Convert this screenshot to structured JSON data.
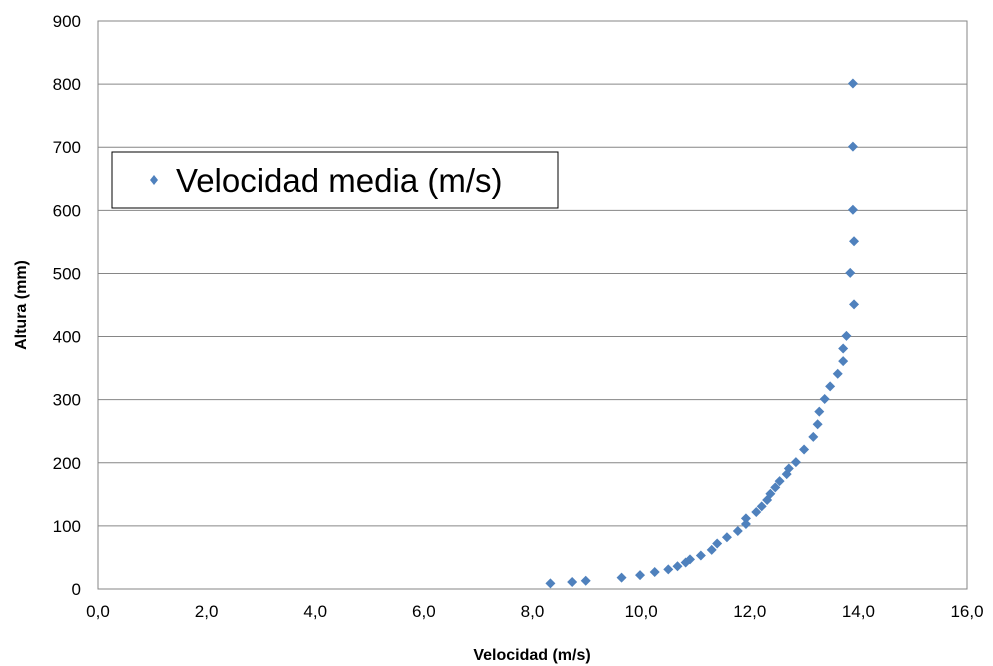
{
  "chart_data": {
    "type": "scatter",
    "title": "",
    "xlabel": "Velocidad (m/s)",
    "ylabel": "Altura (mm)",
    "xlim": [
      0,
      16
    ],
    "ylim": [
      0,
      900
    ],
    "x_ticks": [
      0,
      2,
      4,
      6,
      8,
      10,
      12,
      14,
      16
    ],
    "x_tick_labels": [
      "0,0",
      "2,0",
      "4,0",
      "6,0",
      "8,0",
      "10,0",
      "12,0",
      "14,0",
      "16,0"
    ],
    "y_ticks": [
      0,
      100,
      200,
      300,
      400,
      500,
      600,
      700,
      800,
      900
    ],
    "y_tick_labels": [
      "0",
      "100",
      "200",
      "300",
      "400",
      "500",
      "600",
      "700",
      "800",
      "900"
    ],
    "grid": "horizontal",
    "legend_placement": "upper-left",
    "series": [
      {
        "name": "Velocidad media (m/s)",
        "color": "#4f81bd",
        "marker": "diamond",
        "points": [
          [
            8.33,
            9
          ],
          [
            8.73,
            11
          ],
          [
            8.98,
            13
          ],
          [
            9.64,
            18
          ],
          [
            9.98,
            22
          ],
          [
            10.25,
            27
          ],
          [
            10.5,
            31
          ],
          [
            10.67,
            36
          ],
          [
            10.82,
            42
          ],
          [
            10.9,
            47
          ],
          [
            11.1,
            53
          ],
          [
            11.3,
            62
          ],
          [
            11.4,
            72
          ],
          [
            11.58,
            82
          ],
          [
            11.78,
            92
          ],
          [
            11.93,
            103
          ],
          [
            11.93,
            112
          ],
          [
            12.12,
            122
          ],
          [
            12.22,
            131
          ],
          [
            12.32,
            141
          ],
          [
            12.38,
            151
          ],
          [
            12.47,
            161
          ],
          [
            12.55,
            171
          ],
          [
            12.68,
            182
          ],
          [
            12.72,
            191
          ],
          [
            12.85,
            201
          ],
          [
            13.0,
            221
          ],
          [
            13.17,
            241
          ],
          [
            13.25,
            261
          ],
          [
            13.28,
            281
          ],
          [
            13.38,
            301
          ],
          [
            13.48,
            321
          ],
          [
            13.62,
            341
          ],
          [
            13.72,
            361
          ],
          [
            13.72,
            381
          ],
          [
            13.78,
            401
          ],
          [
            13.92,
            451
          ],
          [
            13.85,
            501
          ],
          [
            13.92,
            551
          ],
          [
            13.9,
            601
          ],
          [
            13.9,
            701
          ],
          [
            13.9,
            801
          ]
        ]
      }
    ]
  }
}
